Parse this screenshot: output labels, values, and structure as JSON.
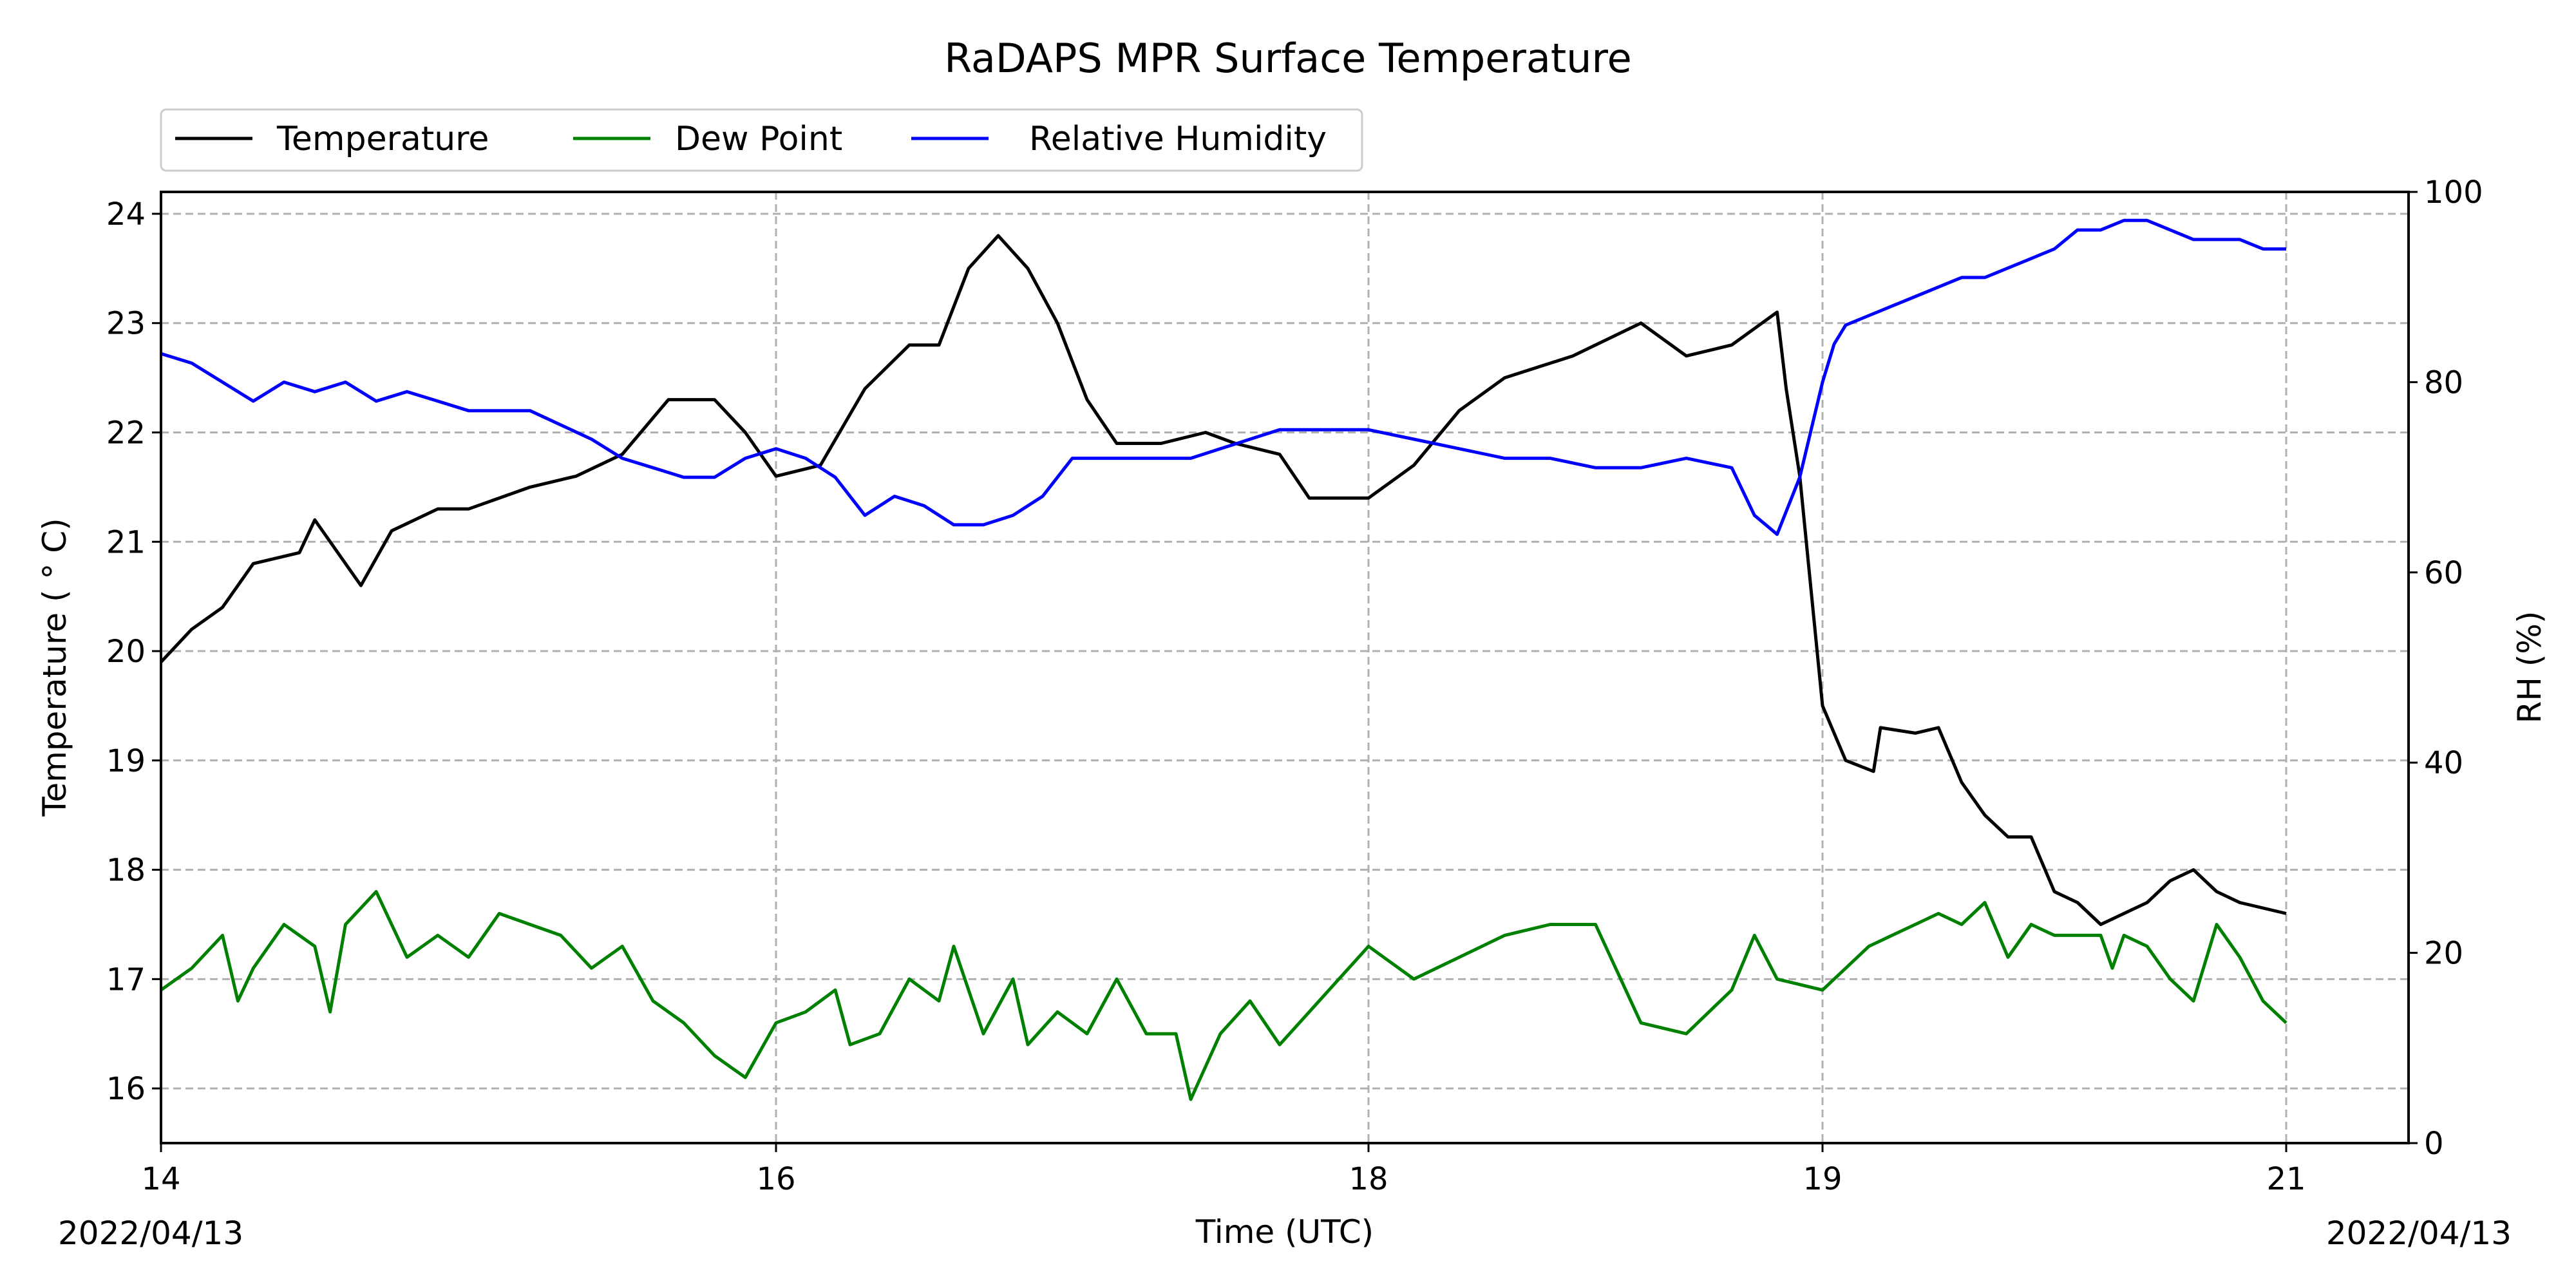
{
  "chart_data": {
    "type": "line",
    "title": "RaDAPS MPR Surface Temperature",
    "xlabel": "Time (UTC)",
    "ylabel_left": "Temperature ($^\\circ$C)",
    "ylabel_left_display": "Temperature ( ° C)",
    "ylabel_right": "RH (%)",
    "start_date": "2022/04/13",
    "end_date": "2022/04/13",
    "x_ticks": [
      {
        "value": 14.0,
        "label": "14"
      },
      {
        "value": 16.0,
        "label": "16"
      },
      {
        "value": 18.0,
        "label": "18"
      },
      {
        "value": 19.0,
        "label": "19"
      },
      {
        "value": 21.0,
        "label": "21"
      }
    ],
    "y_left_ticks": [
      "16",
      "17",
      "18",
      "19",
      "20",
      "21",
      "22",
      "23",
      "24"
    ],
    "y_right_ticks": [
      "0",
      "20",
      "40",
      "60",
      "80",
      "100"
    ],
    "ylim_left": [
      15.5,
      24.2
    ],
    "ylim_right": [
      0,
      100
    ],
    "grid": true,
    "legend_placement": "above top-left",
    "legend": [
      "Temperature",
      "Dew Point",
      "Relative Humidity"
    ],
    "series": [
      {
        "name": "Temperature",
        "axis": "left",
        "color": "#000000",
        "points": [
          [
            14.0,
            19.9
          ],
          [
            14.1,
            20.2
          ],
          [
            14.2,
            20.4
          ],
          [
            14.3,
            20.8
          ],
          [
            14.45,
            20.9
          ],
          [
            14.5,
            21.2
          ],
          [
            14.6,
            20.8
          ],
          [
            14.65,
            20.6
          ],
          [
            14.75,
            21.1
          ],
          [
            14.9,
            21.3
          ],
          [
            15.0,
            21.3
          ],
          [
            15.1,
            21.4
          ],
          [
            15.2,
            21.5
          ],
          [
            15.35,
            21.6
          ],
          [
            15.5,
            21.8
          ],
          [
            15.65,
            22.3
          ],
          [
            15.8,
            22.3
          ],
          [
            15.9,
            22.0
          ],
          [
            16.0,
            21.6
          ],
          [
            16.15,
            21.7
          ],
          [
            16.3,
            22.4
          ],
          [
            16.45,
            22.8
          ],
          [
            16.55,
            22.8
          ],
          [
            16.65,
            23.5
          ],
          [
            16.75,
            23.8
          ],
          [
            16.85,
            23.5
          ],
          [
            16.95,
            23.0
          ],
          [
            17.05,
            22.3
          ],
          [
            17.15,
            21.9
          ],
          [
            17.3,
            21.9
          ],
          [
            17.45,
            22.0
          ],
          [
            17.55,
            21.9
          ],
          [
            17.7,
            21.8
          ],
          [
            17.8,
            21.4
          ],
          [
            17.9,
            21.4
          ],
          [
            18.0,
            21.4
          ],
          [
            18.1,
            21.7
          ],
          [
            18.2,
            22.2
          ],
          [
            18.3,
            22.5
          ],
          [
            18.45,
            22.7
          ],
          [
            18.6,
            23.0
          ],
          [
            18.7,
            22.7
          ],
          [
            18.8,
            22.8
          ],
          [
            18.9,
            23.1
          ],
          [
            18.92,
            22.4
          ],
          [
            18.95,
            21.6
          ],
          [
            19.0,
            19.5
          ],
          [
            19.1,
            19.0
          ],
          [
            19.22,
            18.9
          ],
          [
            19.25,
            19.3
          ],
          [
            19.4,
            19.25
          ],
          [
            19.5,
            19.3
          ],
          [
            19.6,
            18.8
          ],
          [
            19.7,
            18.5
          ],
          [
            19.8,
            18.3
          ],
          [
            19.9,
            18.3
          ],
          [
            20.0,
            17.8
          ],
          [
            20.1,
            17.7
          ],
          [
            20.2,
            17.5
          ],
          [
            20.3,
            17.6
          ],
          [
            20.4,
            17.7
          ],
          [
            20.5,
            17.9
          ],
          [
            20.6,
            18.0
          ],
          [
            20.7,
            17.8
          ],
          [
            20.8,
            17.7
          ],
          [
            21.0,
            17.6
          ]
        ]
      },
      {
        "name": "Dew Point",
        "axis": "left",
        "color": "#008000",
        "points": [
          [
            14.0,
            16.9
          ],
          [
            14.1,
            17.1
          ],
          [
            14.2,
            17.4
          ],
          [
            14.25,
            16.8
          ],
          [
            14.3,
            17.1
          ],
          [
            14.4,
            17.5
          ],
          [
            14.5,
            17.3
          ],
          [
            14.55,
            16.7
          ],
          [
            14.6,
            17.5
          ],
          [
            14.7,
            17.8
          ],
          [
            14.8,
            17.2
          ],
          [
            14.9,
            17.4
          ],
          [
            15.0,
            17.2
          ],
          [
            15.1,
            17.6
          ],
          [
            15.2,
            17.5
          ],
          [
            15.3,
            17.4
          ],
          [
            15.4,
            17.1
          ],
          [
            15.5,
            17.3
          ],
          [
            15.6,
            16.8
          ],
          [
            15.7,
            16.6
          ],
          [
            15.8,
            16.3
          ],
          [
            15.9,
            16.1
          ],
          [
            16.0,
            16.6
          ],
          [
            16.1,
            16.7
          ],
          [
            16.2,
            16.9
          ],
          [
            16.25,
            16.4
          ],
          [
            16.35,
            16.5
          ],
          [
            16.45,
            17.0
          ],
          [
            16.55,
            16.8
          ],
          [
            16.6,
            17.3
          ],
          [
            16.7,
            16.5
          ],
          [
            16.8,
            17.0
          ],
          [
            16.85,
            16.4
          ],
          [
            16.95,
            16.7
          ],
          [
            17.05,
            16.5
          ],
          [
            17.15,
            17.0
          ],
          [
            17.25,
            16.5
          ],
          [
            17.35,
            16.5
          ],
          [
            17.4,
            15.9
          ],
          [
            17.5,
            16.5
          ],
          [
            17.6,
            16.8
          ],
          [
            17.7,
            16.4
          ],
          [
            17.8,
            16.7
          ],
          [
            17.9,
            17.0
          ],
          [
            18.0,
            17.3
          ],
          [
            18.1,
            17.0
          ],
          [
            18.2,
            17.2
          ],
          [
            18.3,
            17.4
          ],
          [
            18.4,
            17.5
          ],
          [
            18.5,
            17.5
          ],
          [
            18.6,
            16.6
          ],
          [
            18.7,
            16.5
          ],
          [
            18.8,
            16.9
          ],
          [
            18.85,
            17.4
          ],
          [
            18.9,
            17.0
          ],
          [
            19.0,
            16.9
          ],
          [
            19.1,
            17.1
          ],
          [
            19.2,
            17.3
          ],
          [
            19.3,
            17.4
          ],
          [
            19.4,
            17.5
          ],
          [
            19.5,
            17.6
          ],
          [
            19.6,
            17.5
          ],
          [
            19.7,
            17.7
          ],
          [
            19.8,
            17.2
          ],
          [
            19.9,
            17.5
          ],
          [
            20.0,
            17.4
          ],
          [
            20.1,
            17.4
          ],
          [
            20.2,
            17.4
          ],
          [
            20.25,
            17.1
          ],
          [
            20.3,
            17.4
          ],
          [
            20.4,
            17.3
          ],
          [
            20.5,
            17.0
          ],
          [
            20.6,
            16.8
          ],
          [
            20.7,
            17.5
          ],
          [
            20.8,
            17.2
          ],
          [
            20.9,
            16.8
          ],
          [
            21.0,
            16.6
          ]
        ]
      },
      {
        "name": "Relative Humidity",
        "axis": "right",
        "color": "#0000ff",
        "points": [
          [
            14.0,
            83
          ],
          [
            14.1,
            82
          ],
          [
            14.2,
            80
          ],
          [
            14.3,
            78
          ],
          [
            14.4,
            80
          ],
          [
            14.5,
            79
          ],
          [
            14.6,
            80
          ],
          [
            14.7,
            78
          ],
          [
            14.8,
            79
          ],
          [
            14.9,
            78
          ],
          [
            15.0,
            77
          ],
          [
            15.2,
            77
          ],
          [
            15.4,
            74
          ],
          [
            15.5,
            72
          ],
          [
            15.6,
            71
          ],
          [
            15.7,
            70
          ],
          [
            15.8,
            70
          ],
          [
            15.9,
            72
          ],
          [
            16.0,
            73
          ],
          [
            16.1,
            72
          ],
          [
            16.2,
            70
          ],
          [
            16.3,
            66
          ],
          [
            16.4,
            68
          ],
          [
            16.5,
            67
          ],
          [
            16.6,
            65
          ],
          [
            16.7,
            65
          ],
          [
            16.8,
            66
          ],
          [
            16.9,
            68
          ],
          [
            17.0,
            72
          ],
          [
            17.1,
            72
          ],
          [
            17.2,
            72
          ],
          [
            17.3,
            72
          ],
          [
            17.4,
            72
          ],
          [
            17.5,
            73
          ],
          [
            17.6,
            74
          ],
          [
            17.7,
            75
          ],
          [
            17.8,
            75
          ],
          [
            17.9,
            75
          ],
          [
            18.0,
            75
          ],
          [
            18.1,
            74
          ],
          [
            18.2,
            73
          ],
          [
            18.3,
            72
          ],
          [
            18.4,
            72
          ],
          [
            18.5,
            71
          ],
          [
            18.6,
            71
          ],
          [
            18.7,
            72
          ],
          [
            18.8,
            71
          ],
          [
            18.85,
            66
          ],
          [
            18.9,
            64
          ],
          [
            18.95,
            70
          ],
          [
            19.0,
            80
          ],
          [
            19.05,
            84
          ],
          [
            19.1,
            86
          ],
          [
            19.2,
            87
          ],
          [
            19.3,
            88
          ],
          [
            19.4,
            89
          ],
          [
            19.5,
            90
          ],
          [
            19.6,
            91
          ],
          [
            19.7,
            91
          ],
          [
            19.8,
            92
          ],
          [
            19.9,
            93
          ],
          [
            20.0,
            94
          ],
          [
            20.1,
            96
          ],
          [
            20.2,
            96
          ],
          [
            20.3,
            97
          ],
          [
            20.4,
            97
          ],
          [
            20.5,
            96
          ],
          [
            20.6,
            95
          ],
          [
            20.7,
            95
          ],
          [
            20.8,
            95
          ],
          [
            20.9,
            94
          ],
          [
            21.0,
            94
          ]
        ]
      }
    ]
  }
}
